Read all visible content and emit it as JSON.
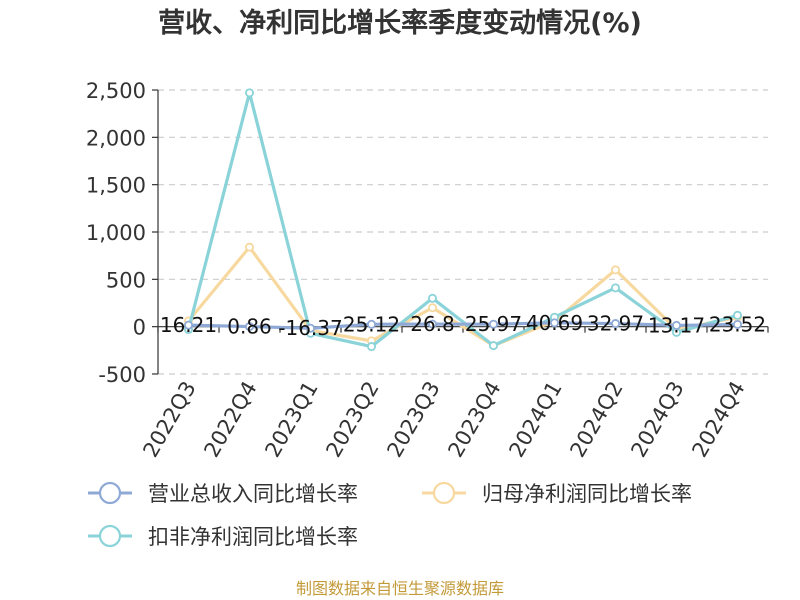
{
  "chart_data": {
    "type": "line",
    "title": "营收、净利同比增长率季度变动情况(%)",
    "categories": [
      "2022Q3",
      "2022Q4",
      "2023Q1",
      "2023Q2",
      "2023Q3",
      "2023Q4",
      "2024Q1",
      "2024Q2",
      "2024Q3",
      "2024Q4"
    ],
    "series": [
      {
        "name": "营业总收入同比增长率",
        "color": "#8fa9d6",
        "values": [
          16.21,
          0.86,
          -16.37,
          25.12,
          26.8,
          25.97,
          40.69,
          32.97,
          13.17,
          23.52
        ]
      },
      {
        "name": "归母净利润同比增长率",
        "color": "#f7d9a0",
        "values": [
          60,
          840,
          -40,
          -150,
          200,
          -200,
          60,
          600,
          -30,
          100
        ]
      },
      {
        "name": "扣非净利润同比增长率",
        "color": "#8ad3d8",
        "values": [
          -30,
          2470,
          -70,
          -210,
          300,
          -200,
          100,
          410,
          -60,
          120
        ]
      }
    ],
    "data_labels": [
      "16.21",
      "0.86",
      "-16.37",
      "25.12",
      "26.8",
      "25.97",
      "40.69",
      "32.97",
      "13.17",
      "23.52"
    ],
    "ylim": [
      -500,
      2500
    ],
    "yticks": [
      -500,
      0,
      500,
      1000,
      1500,
      2000,
      2500
    ],
    "ytick_labels": [
      "-500",
      "0",
      "500",
      "1,000",
      "1,500",
      "2,000",
      "2,500"
    ],
    "grid": true,
    "legend_position": "bottom-left",
    "source": "制图数据来自恒生聚源数据库"
  }
}
